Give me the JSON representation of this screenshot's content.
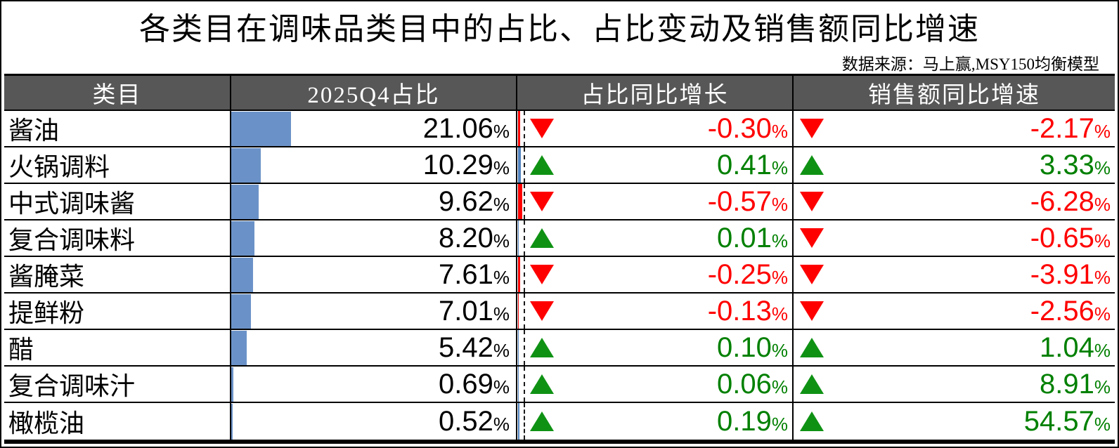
{
  "title": "各类目在调味品类目中的占比、占比变动及销售额同比增速",
  "source": "数据来源：马上赢,MSY150均衡模型",
  "table": {
    "headers": [
      "类目",
      "2025Q4占比",
      "占比同比增长",
      "销售额同比增速"
    ],
    "rows": [
      {
        "category": "酱油",
        "share": "21.06%",
        "share_value": 21.06,
        "share_change": "-0.30%",
        "share_change_value": -0.3,
        "share_change_dir": "down",
        "sales_growth": "-2.17%",
        "sales_growth_value": -2.17,
        "sales_growth_dir": "down"
      },
      {
        "category": "火锅调料",
        "share": "10.29%",
        "share_value": 10.29,
        "share_change": "0.41%",
        "share_change_value": 0.41,
        "share_change_dir": "up",
        "sales_growth": "3.33%",
        "sales_growth_value": 3.33,
        "sales_growth_dir": "up"
      },
      {
        "category": "中式调味酱",
        "share": "9.62%",
        "share_value": 9.62,
        "share_change": "-0.57%",
        "share_change_value": -0.57,
        "share_change_dir": "down",
        "sales_growth": "-6.28%",
        "sales_growth_value": -6.28,
        "sales_growth_dir": "down"
      },
      {
        "category": "复合调味料",
        "share": "8.20%",
        "share_value": 8.2,
        "share_change": "0.01%",
        "share_change_value": 0.01,
        "share_change_dir": "up",
        "sales_growth": "-0.65%",
        "sales_growth_value": -0.65,
        "sales_growth_dir": "down"
      },
      {
        "category": "酱腌菜",
        "share": "7.61%",
        "share_value": 7.61,
        "share_change": "-0.25%",
        "share_change_value": -0.25,
        "share_change_dir": "down",
        "sales_growth": "-3.91%",
        "sales_growth_value": -3.91,
        "sales_growth_dir": "down"
      },
      {
        "category": "提鲜粉",
        "share": "7.01%",
        "share_value": 7.01,
        "share_change": "-0.13%",
        "share_change_value": -0.13,
        "share_change_dir": "down",
        "sales_growth": "-2.56%",
        "sales_growth_value": -2.56,
        "sales_growth_dir": "down"
      },
      {
        "category": "醋",
        "share": "5.42%",
        "share_value": 5.42,
        "share_change": "0.10%",
        "share_change_value": 0.1,
        "share_change_dir": "up",
        "sales_growth": "1.04%",
        "sales_growth_value": 1.04,
        "sales_growth_dir": "up"
      },
      {
        "category": "复合调味汁",
        "share": "0.69%",
        "share_value": 0.69,
        "share_change": "0.06%",
        "share_change_value": 0.06,
        "share_change_dir": "up",
        "sales_growth": "8.91%",
        "sales_growth_value": 8.91,
        "sales_growth_dir": "up"
      },
      {
        "category": "橄榄油",
        "share": "0.52%",
        "share_value": 0.52,
        "share_change": "0.19%",
        "share_change_value": 0.19,
        "share_change_dir": "up",
        "sales_growth": "54.57%",
        "sales_growth_value": 54.57,
        "sales_growth_dir": "up"
      }
    ]
  },
  "colors": {
    "header_bg": "#575757",
    "header_text": "#ffffff",
    "bar_blue": "#6b92c8",
    "positive_sliver_blue": "#4f81bd",
    "negative_red": "#fe0000",
    "positive_green": "#008000",
    "triangle_up_green": "#0f9214",
    "triangle_down_red": "#ff0000"
  },
  "chart_data": {
    "type": "table",
    "title": "各类目在调味品类目中的占比、占比变动及销售额同比增速",
    "source": "数据来源：马上赢,MSY150均衡模型",
    "columns": [
      "类目",
      "2025Q4占比",
      "占比同比增长",
      "销售额同比增速"
    ],
    "categories": [
      "酱油",
      "火锅调料",
      "中式调味酱",
      "复合调味料",
      "酱腌菜",
      "提鲜粉",
      "醋",
      "复合调味汁",
      "橄榄油"
    ],
    "series": [
      {
        "name": "2025Q4占比(%)",
        "values": [
          21.06,
          10.29,
          9.62,
          8.2,
          7.61,
          7.01,
          5.42,
          0.69,
          0.52
        ]
      },
      {
        "name": "占比同比增长(%)",
        "values": [
          -0.3,
          0.41,
          -0.57,
          0.01,
          -0.25,
          -0.13,
          0.1,
          0.06,
          0.19
        ]
      },
      {
        "name": "销售额同比增速(%)",
        "values": [
          -2.17,
          3.33,
          -6.28,
          -0.65,
          -3.91,
          -2.56,
          1.04,
          8.91,
          54.57
        ]
      }
    ],
    "layout": {
      "share_bar_scale": "bar width = share% of column width",
      "up_marker": "green triangle",
      "down_marker": "red triangle"
    }
  }
}
